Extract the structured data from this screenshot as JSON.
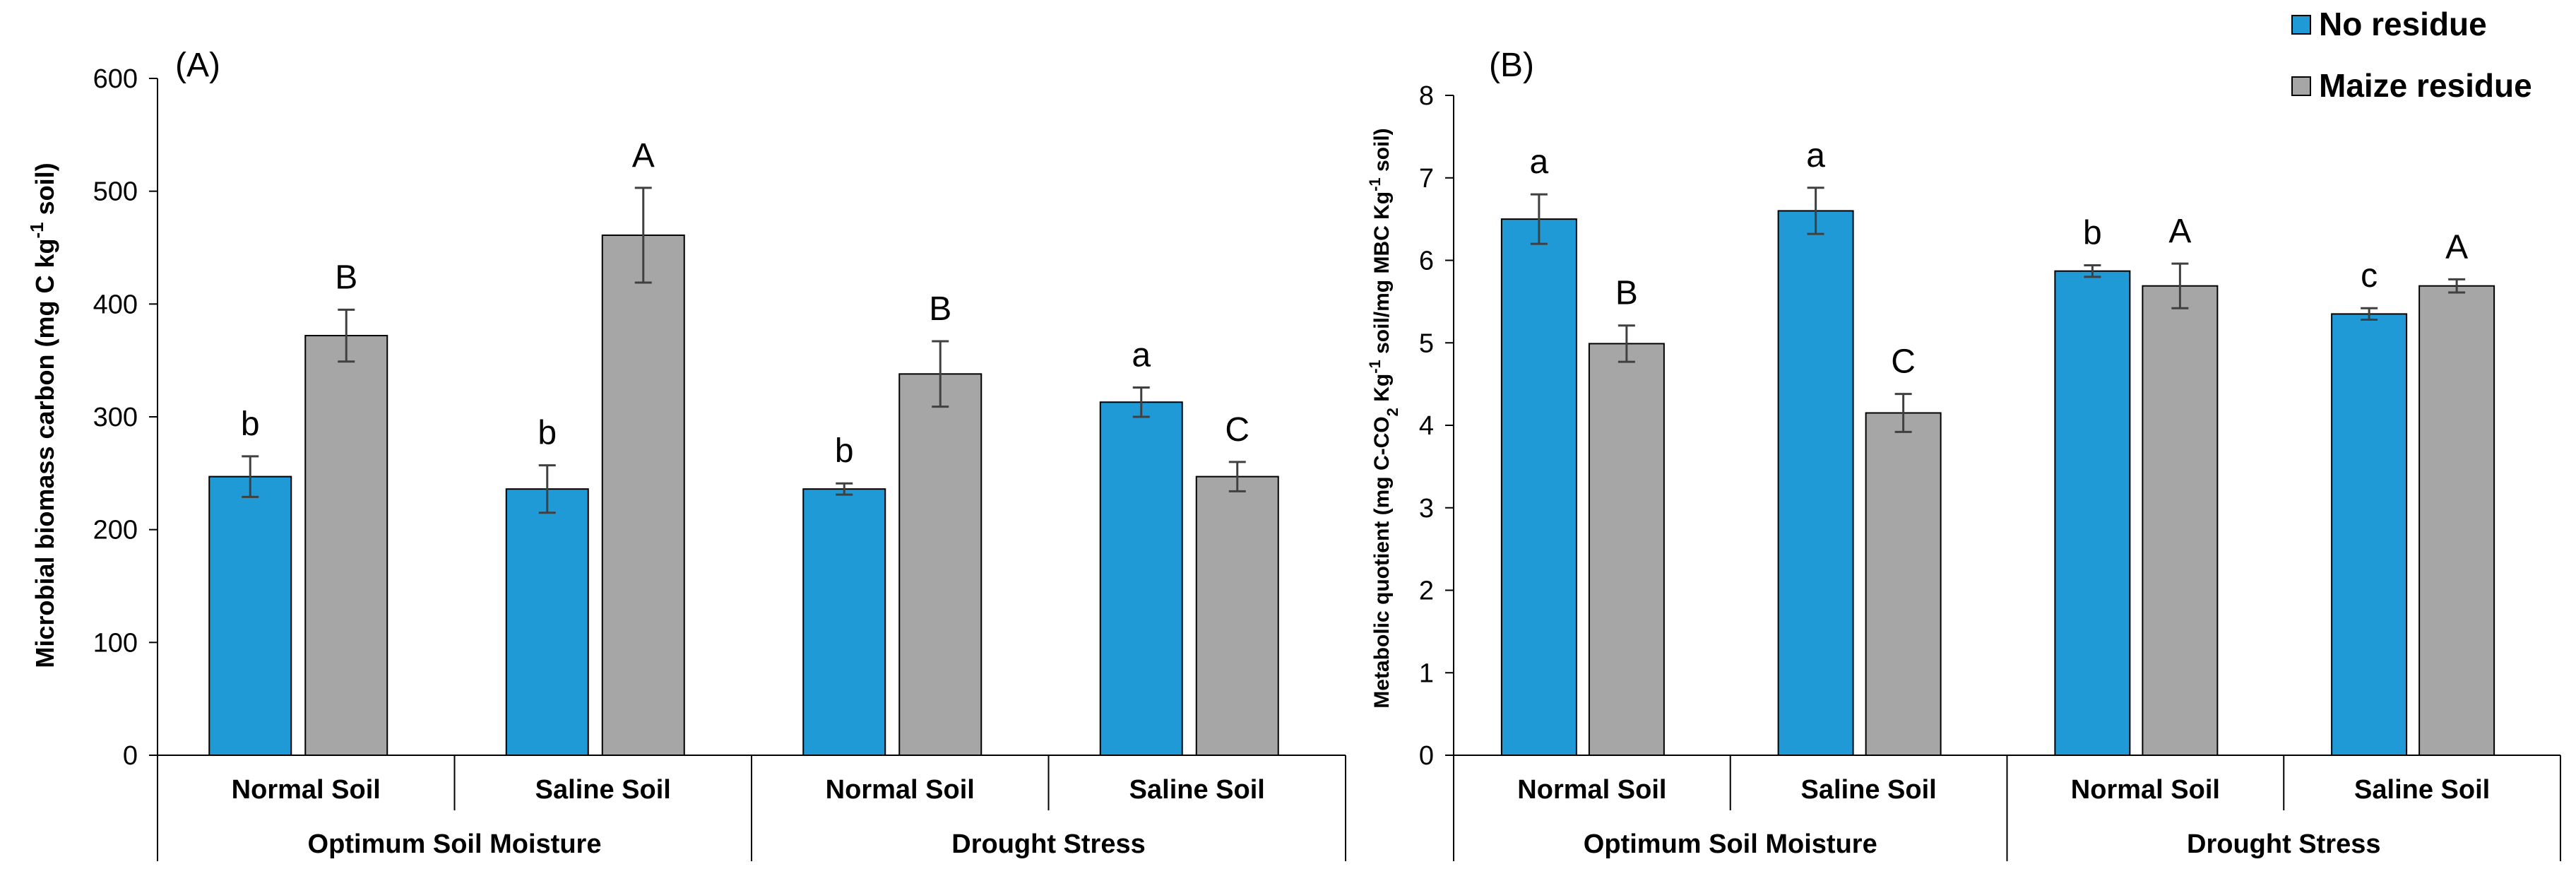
{
  "legend": {
    "placement": "top-right",
    "items": [
      {
        "label": "No residue",
        "color": "#1f9ad6"
      },
      {
        "label": "Maize residue",
        "color": "#a6a6a6"
      }
    ]
  },
  "chart_data": [
    {
      "type": "bar",
      "panel_label": "(A)",
      "ylabel_main": "Microbial biomass carbon (mg C kg",
      "ylabel_sup": "-1",
      "ylabel_end": " soil)",
      "ylim": [
        0,
        600
      ],
      "yticks": [
        "0",
        "100",
        "200",
        "300",
        "400",
        "500",
        "600"
      ],
      "categories": [
        "Normal Soil",
        "Saline Soil",
        "Normal Soil",
        "Saline Soil"
      ],
      "groups": [
        "Optimum Soil Moisture",
        "Drought Stress"
      ],
      "series": [
        {
          "name": "No residue",
          "values": [
            247,
            236,
            236,
            313
          ],
          "errors": [
            18,
            21,
            5,
            13
          ],
          "letters": [
            "b",
            "b",
            "b",
            "a"
          ]
        },
        {
          "name": "Maize residue",
          "values": [
            372,
            461,
            338,
            247
          ],
          "errors": [
            23,
            42,
            29,
            13
          ],
          "letters": [
            "B",
            "A",
            "B",
            "C"
          ]
        }
      ],
      "grid": false
    },
    {
      "type": "bar",
      "panel_label": "(B)",
      "ylabel_parts": {
        "a": "Metabolic quotient (mg C-CO",
        "sub": "2",
        "b": " Kg",
        "sup1": "-1",
        "c": " soil/mg MBC Kg",
        "sup2": "-1",
        "d": " soil)"
      },
      "ylim": [
        0,
        8
      ],
      "yticks": [
        "0",
        "1",
        "2",
        "3",
        "4",
        "5",
        "6",
        "7",
        "8"
      ],
      "categories": [
        "Normal Soil",
        "Saline Soil",
        "Normal Soil",
        "Saline Soil"
      ],
      "groups": [
        "Optimum Soil Moisture",
        "Drought Stress"
      ],
      "series": [
        {
          "name": "No residue",
          "values": [
            6.5,
            6.6,
            5.87,
            5.35
          ],
          "errors": [
            0.3,
            0.28,
            0.07,
            0.07
          ],
          "letters": [
            "a",
            "a",
            "b",
            "c"
          ]
        },
        {
          "name": "Maize residue",
          "values": [
            4.99,
            4.15,
            5.69,
            5.69
          ],
          "errors": [
            0.22,
            0.23,
            0.27,
            0.08
          ],
          "letters": [
            "B",
            "C",
            "A",
            "A"
          ]
        }
      ],
      "grid": false
    }
  ]
}
